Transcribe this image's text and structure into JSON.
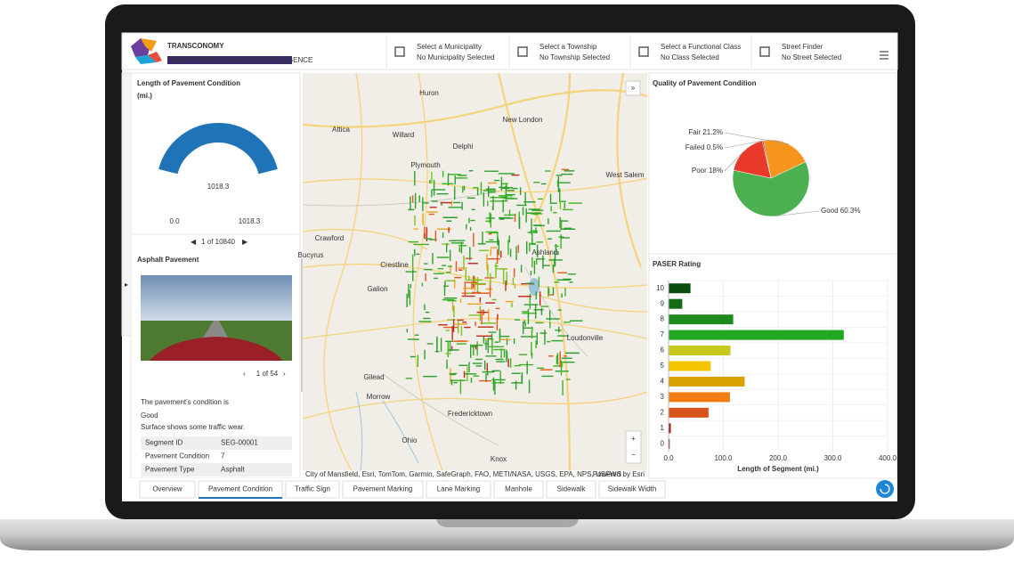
{
  "header": {
    "title": "TRANSCONOMY",
    "subtitle": "TRANSPORTATION ASSET INTELLIGENCE",
    "filters": [
      {
        "label": "Select a Municipality",
        "value": "No Municipality Selected"
      },
      {
        "label": "Select a Township",
        "value": "No Township Selected"
      },
      {
        "label": "Select a Functional Class",
        "value": "No Class Selected"
      },
      {
        "label": "Street Finder",
        "value": "No Street Selected"
      }
    ]
  },
  "left_panel": {
    "title": "Length of Pavement Condition (mi.)",
    "gauge": {
      "value": 1018.3,
      "min": {
        "value": 0,
        "label": "0.0"
      },
      "max": 1018.3
    },
    "pager": "1 of 10840",
    "feature_title": "Asphalt Pavement",
    "image_pager": "1 of 54",
    "condition": "The pavement's condition is Good",
    "description": "Surface shows some traffic wear.",
    "table": {
      "rows": [
        [
          "Segment ID",
          "SEG-00001"
        ],
        [
          "Pavement Condition",
          "7"
        ],
        [
          "Pavement Type",
          "Asphalt"
        ]
      ]
    }
  },
  "map": {
    "places": [
      "Huron",
      "New London",
      "Attica",
      "Willard",
      "Delphi",
      "Plymouth",
      "West Salem",
      "Crawford",
      "Ashland",
      "Bucyrus",
      "Crestline",
      "Galion",
      "Loudonville",
      "Gilead",
      "Morrow",
      "Fredericktown",
      "Ohio",
      "Knox"
    ],
    "attribution": "City of Mansfield, Esri, TomTom, Garmin, SafeGraph, FAO, METI/NASA, USGS, EPA, NPS, USFWS",
    "powered": "Powered by Esri"
  },
  "tabs": [
    "Overview",
    "Pavement Condition",
    "Traffic Sign",
    "Pavement Marking",
    "Lane Marking",
    "Manhole",
    "Sidewalk",
    "Sidewalk Width"
  ],
  "chart_data": [
    {
      "type": "pie",
      "title": "Quality of Pavement Condition",
      "categories": [
        "Fair",
        "Good",
        "Poor",
        "Failed"
      ],
      "values": [
        21.2,
        60.3,
        18,
        0.5
      ],
      "value_labels": [
        "Fair 21.2%",
        "Good 60.3%",
        "Poor 18%",
        "Failed 0.5%"
      ],
      "colors": [
        "#f7941d",
        "#4caf50",
        "#e8392a",
        "#6b1a10"
      ]
    },
    {
      "type": "bar",
      "title": "PASER Rating",
      "orientation": "horizontal",
      "categories": [
        "10",
        "9",
        "8",
        "7",
        "6",
        "5",
        "4",
        "3",
        "2",
        "1",
        "0"
      ],
      "values": [
        40,
        25,
        118,
        320,
        113,
        77,
        139,
        112,
        73,
        4,
        2
      ],
      "colors": [
        "#0b4d0b",
        "#146b14",
        "#1e8a1e",
        "#22a722",
        "#c8c81e",
        "#f5c400",
        "#d9a200",
        "#f07c14",
        "#d9541a",
        "#a01010",
        "#8a0b0b"
      ],
      "xlabel": "Length of Segment (mi.)",
      "xlim": [
        0,
        400
      ],
      "xticks": [
        {
          "value": 0,
          "label": "0.0"
        },
        {
          "value": 100,
          "label": "100.0"
        },
        {
          "value": 200,
          "label": "200.0"
        },
        {
          "value": 300,
          "label": "300.0"
        },
        {
          "value": 400,
          "label": "400.0"
        }
      ],
      "grid": true
    }
  ]
}
